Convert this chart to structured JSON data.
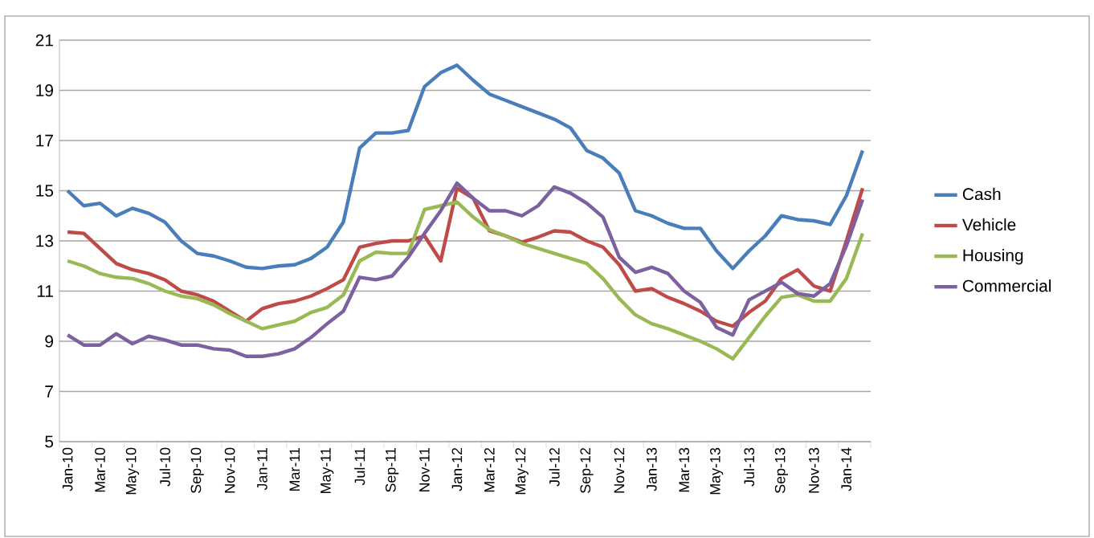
{
  "chart_data": {
    "type": "line",
    "categories": [
      "Jan-10",
      null,
      "Mar-10",
      null,
      "May-10",
      null,
      "Jul-10",
      null,
      "Sep-10",
      null,
      "Nov-10",
      null,
      "Jan-11",
      null,
      "Mar-11",
      null,
      "May-11",
      null,
      "Jul-11",
      null,
      "Sep-11",
      null,
      "Nov-11",
      null,
      "Jan-12",
      null,
      "Mar-12",
      null,
      "May-12",
      null,
      "Jul-12",
      null,
      "Sep-12",
      null,
      "Nov-12",
      null,
      "Jan-13",
      null,
      "Mar-13",
      null,
      "May-13",
      null,
      "Jul-13",
      null,
      "Sep-13",
      null,
      "Nov-13",
      null,
      "Jan-14",
      null
    ],
    "series": [
      {
        "name": "Cash",
        "color": "#4a7ebb",
        "values": [
          15.0,
          14.4,
          14.5,
          14.0,
          14.3,
          14.1,
          13.75,
          13.0,
          12.5,
          12.4,
          12.2,
          11.95,
          11.9,
          12.0,
          12.05,
          12.3,
          12.75,
          13.75,
          16.7,
          17.3,
          17.3,
          17.4,
          19.15,
          19.7,
          20.0,
          19.4,
          18.85,
          18.6,
          18.35,
          18.1,
          17.85,
          17.5,
          16.6,
          16.3,
          15.7,
          14.2,
          14.0,
          13.7,
          13.5,
          13.5,
          12.6,
          11.9,
          12.6,
          13.2,
          14.0,
          13.85,
          13.8,
          13.65,
          14.8,
          16.6
        ]
      },
      {
        "name": "Vehicle",
        "color": "#be4b48",
        "values": [
          13.35,
          13.3,
          12.7,
          12.1,
          11.85,
          11.7,
          11.45,
          11.0,
          10.85,
          10.6,
          10.2,
          9.8,
          10.3,
          10.5,
          10.6,
          10.8,
          11.1,
          11.45,
          12.75,
          12.9,
          13.0,
          13.0,
          13.2,
          12.2,
          15.1,
          14.7,
          13.4,
          13.2,
          12.95,
          13.15,
          13.4,
          13.35,
          13.0,
          12.75,
          12.05,
          11.0,
          11.1,
          10.75,
          10.5,
          10.2,
          9.8,
          9.6,
          10.15,
          10.6,
          11.5,
          11.85,
          11.2,
          11.0,
          13.0,
          15.1
        ]
      },
      {
        "name": "Housing",
        "color": "#98b954",
        "values": [
          12.2,
          12.0,
          11.7,
          11.55,
          11.5,
          11.3,
          11.0,
          10.8,
          10.7,
          10.45,
          10.1,
          9.8,
          9.5,
          9.65,
          9.8,
          10.15,
          10.35,
          10.85,
          12.2,
          12.55,
          12.5,
          12.5,
          14.25,
          14.4,
          14.55,
          13.95,
          13.45,
          13.2,
          12.9,
          12.7,
          12.5,
          12.3,
          12.1,
          11.5,
          10.7,
          10.05,
          9.7,
          9.5,
          9.25,
          9.0,
          8.7,
          8.3,
          9.15,
          10.0,
          10.75,
          10.85,
          10.6,
          10.6,
          11.5,
          13.3
        ]
      },
      {
        "name": "Commercial",
        "color": "#7d60a0",
        "values": [
          9.25,
          8.85,
          8.85,
          9.3,
          8.9,
          9.2,
          9.05,
          8.85,
          8.85,
          8.7,
          8.65,
          8.4,
          8.4,
          8.5,
          8.7,
          9.15,
          9.7,
          10.2,
          11.55,
          11.45,
          11.6,
          12.35,
          13.3,
          14.2,
          15.3,
          14.7,
          14.2,
          14.2,
          14.0,
          14.4,
          15.15,
          14.9,
          14.5,
          13.95,
          12.35,
          11.75,
          11.95,
          11.7,
          11.0,
          10.55,
          9.55,
          9.25,
          10.65,
          11.0,
          11.35,
          10.9,
          10.8,
          11.3,
          12.8,
          14.65
        ]
      }
    ],
    "ylim": [
      5,
      21
    ],
    "yticks": [
      5,
      7,
      9,
      11,
      13,
      15,
      17,
      19,
      21
    ],
    "grid": "y",
    "legend": "right",
    "marker": "none",
    "line_style": "solid"
  }
}
